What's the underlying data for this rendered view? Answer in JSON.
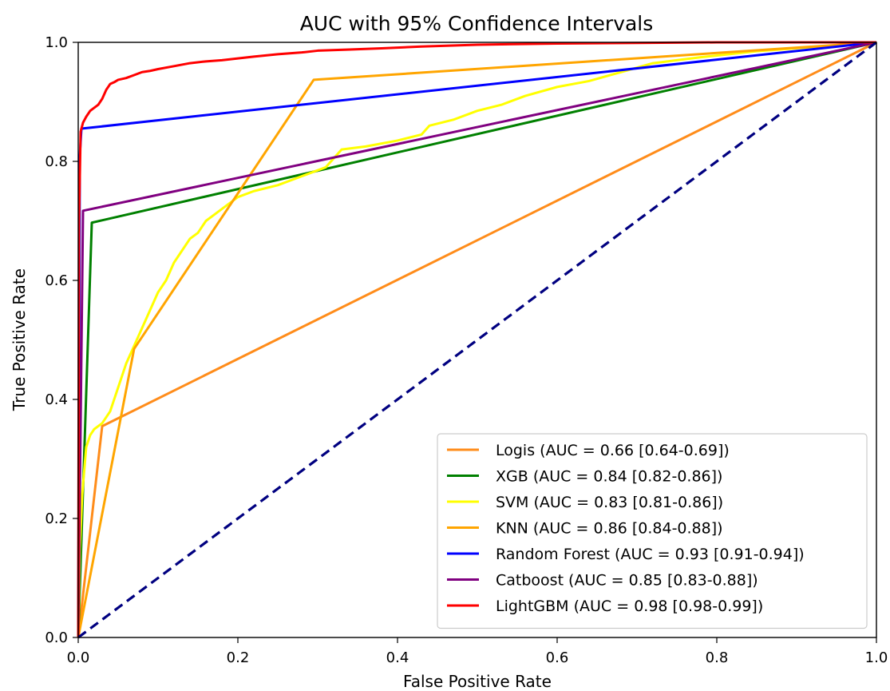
{
  "chart_data": {
    "type": "line",
    "title": "AUC with 95% Confidence Intervals",
    "xlabel": "False Positive Rate",
    "ylabel": "True Positive Rate",
    "xlim": [
      0.0,
      1.0
    ],
    "ylim": [
      0.0,
      1.0
    ],
    "x_ticks": [
      "0.0",
      "0.2",
      "0.4",
      "0.6",
      "0.8",
      "1.0"
    ],
    "y_ticks": [
      "0.0",
      "0.2",
      "0.4",
      "0.6",
      "0.8",
      "1.0"
    ],
    "grid": false,
    "legend_position": "lower-right",
    "series": [
      {
        "name": "Logis (AUC = 0.66 [0.64-0.69])",
        "color": "#ff8c1a",
        "x": [
          0.0,
          0.03,
          1.0
        ],
        "y": [
          0.0,
          0.355,
          1.0
        ]
      },
      {
        "name": "XGB (AUC = 0.84 [0.82-0.86])",
        "color": "#008000",
        "x": [
          0.0,
          0.017,
          1.0
        ],
        "y": [
          0.0,
          0.697,
          1.0
        ]
      },
      {
        "name": "SVM (AUC = 0.83 [0.81-0.86])",
        "color": "#ffff00",
        "x": [
          0.0,
          0.002,
          0.005,
          0.01,
          0.015,
          0.02,
          0.03,
          0.04,
          0.05,
          0.06,
          0.07,
          0.08,
          0.09,
          0.1,
          0.11,
          0.12,
          0.13,
          0.14,
          0.15,
          0.16,
          0.17,
          0.18,
          0.19,
          0.2,
          0.22,
          0.25,
          0.28,
          0.31,
          0.33,
          0.36,
          0.4,
          0.43,
          0.44,
          0.47,
          0.5,
          0.53,
          0.56,
          0.6,
          0.64,
          0.68,
          0.72,
          0.78,
          0.85,
          0.92,
          1.0
        ],
        "y": [
          0.0,
          0.15,
          0.24,
          0.32,
          0.34,
          0.35,
          0.36,
          0.38,
          0.42,
          0.46,
          0.49,
          0.52,
          0.55,
          0.58,
          0.6,
          0.63,
          0.65,
          0.67,
          0.68,
          0.7,
          0.71,
          0.72,
          0.73,
          0.74,
          0.75,
          0.76,
          0.775,
          0.79,
          0.82,
          0.825,
          0.835,
          0.845,
          0.86,
          0.87,
          0.885,
          0.895,
          0.91,
          0.925,
          0.935,
          0.95,
          0.965,
          0.975,
          0.985,
          0.992,
          1.0
        ]
      },
      {
        "name": "KNN (AUC = 0.86 [0.84-0.88])",
        "color": "#ffa500",
        "x": [
          0.0,
          0.07,
          0.295,
          1.0
        ],
        "y": [
          0.0,
          0.485,
          0.937,
          1.0
        ]
      },
      {
        "name": "Random Forest (AUC = 0.93 [0.91-0.94])",
        "color": "#0000ff",
        "x": [
          0.0,
          0.002,
          0.004,
          1.0
        ],
        "y": [
          0.0,
          0.81,
          0.855,
          1.0
        ]
      },
      {
        "name": "Catboost (AUC = 0.85 [0.83-0.88])",
        "color": "#800080",
        "x": [
          0.0,
          0.006,
          1.0
        ],
        "y": [
          0.0,
          0.717,
          1.0
        ]
      },
      {
        "name": "LightGBM (AUC = 0.98 [0.98-0.99])",
        "color": "#ff0000",
        "x": [
          0.0,
          0.001,
          0.003,
          0.006,
          0.01,
          0.015,
          0.02,
          0.025,
          0.03,
          0.035,
          0.04,
          0.045,
          0.05,
          0.06,
          0.07,
          0.08,
          0.09,
          0.1,
          0.12,
          0.14,
          0.16,
          0.18,
          0.2,
          0.22,
          0.25,
          0.28,
          0.3,
          0.34,
          0.38,
          0.43,
          0.5,
          0.6,
          0.7,
          0.8,
          0.9,
          1.0
        ],
        "y": [
          0.0,
          0.7,
          0.85,
          0.865,
          0.875,
          0.885,
          0.89,
          0.895,
          0.905,
          0.92,
          0.93,
          0.933,
          0.937,
          0.94,
          0.945,
          0.95,
          0.952,
          0.955,
          0.96,
          0.965,
          0.968,
          0.97,
          0.973,
          0.976,
          0.98,
          0.983,
          0.986,
          0.988,
          0.99,
          0.993,
          0.996,
          0.998,
          0.999,
          1.0,
          1.0,
          1.0
        ]
      }
    ],
    "reference_line": {
      "color": "#000080",
      "style": "dashed",
      "x": [
        0.0,
        1.0
      ],
      "y": [
        0.0,
        1.0
      ]
    }
  }
}
